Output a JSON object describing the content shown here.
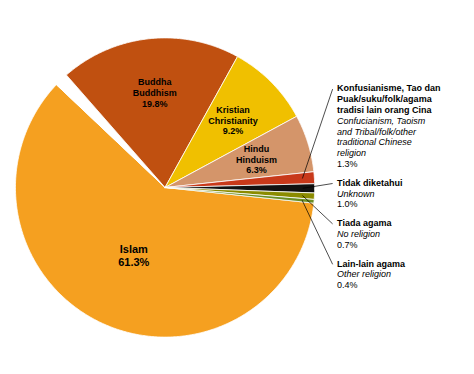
{
  "chart_data": {
    "type": "pie",
    "categories": [
      "Islam",
      null,
      "Buddha",
      "Kristian",
      "Hindu",
      "Konfusianisme, Tao dan\nPuak/suku/folk/agama\ntradisi lain orang Cina",
      "Tidak diketahui",
      "Tiada agama",
      "Lain-lain agama"
    ],
    "translations": [
      null,
      null,
      "Buddhism",
      "Christianity",
      "Hinduism",
      "Confucianism, Taoism\nand Tribal/folk/other\ntraditional Chinese\nreligion",
      "Unknown",
      "No religion",
      "Other religion"
    ],
    "values": [
      61.3,
      1.5,
      19.8,
      9.2,
      6.3,
      1.3,
      1.0,
      0.7,
      0.4
    ],
    "value_labels": [
      "61.3%",
      null,
      "19.8%",
      "9.2%",
      "6.3%",
      "1.3%",
      "1.0%",
      "0.7%",
      "0.4%"
    ],
    "colors": [
      "#F5A020",
      "#FFFFFF",
      "#C05010",
      "#F0C000",
      "#D4956A",
      "#C8391A",
      "#111111",
      "#8B8B00",
      "#6B8E23"
    ],
    "data_labels": true
  }
}
